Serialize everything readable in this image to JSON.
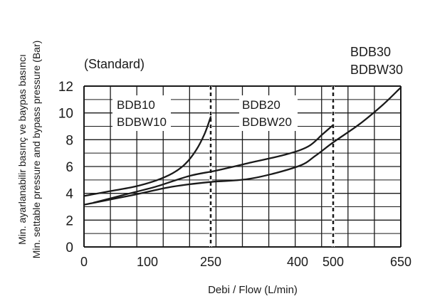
{
  "chart_data": {
    "type": "line",
    "title": "(Standard)",
    "xlabel": "Debi / Flow (L/min)",
    "ylabel_lines": [
      "Min. ayarlanabilir basınç ve baypas basıncı",
      "Min. settable pressure and bypass pressure (Bar)"
    ],
    "x_ticks": [
      "0",
      "100",
      "250",
      "400",
      "500",
      "650"
    ],
    "y_ticks": [
      "0",
      "2",
      "4",
      "6",
      "8",
      "10",
      "12"
    ],
    "ylim": [
      0,
      12
    ],
    "grid": true,
    "limit_markers": [
      {
        "series": "BDB10",
        "x": 250
      },
      {
        "series": "BDB20",
        "x": 500
      }
    ],
    "series": [
      {
        "name": "BDB10",
        "label_lines": [
          "BDB10",
          "BDBW10"
        ],
        "points": [
          [
            0,
            3.8
          ],
          [
            40,
            4.15
          ],
          [
            80,
            4.5
          ],
          [
            120,
            4.95
          ],
          [
            160,
            5.5
          ],
          [
            190,
            6.2
          ],
          [
            215,
            7.2
          ],
          [
            235,
            8.4
          ],
          [
            250,
            9.7
          ]
        ]
      },
      {
        "name": "BDB20",
        "label_lines": [
          "BDB20",
          "BDBW20"
        ],
        "points": [
          [
            15,
            3.3
          ],
          [
            60,
            3.85
          ],
          [
            120,
            4.5
          ],
          [
            200,
            5.3
          ],
          [
            260,
            5.7
          ],
          [
            320,
            6.3
          ],
          [
            380,
            6.9
          ],
          [
            430,
            7.5
          ],
          [
            470,
            8.4
          ],
          [
            500,
            9.1
          ]
        ]
      },
      {
        "name": "BDB30",
        "label_lines": [
          "BDB30",
          "BDBW30"
        ],
        "points": [
          [
            0,
            3.15
          ],
          [
            80,
            3.9
          ],
          [
            160,
            4.5
          ],
          [
            250,
            4.85
          ],
          [
            320,
            5.1
          ],
          [
            400,
            6.0
          ],
          [
            450,
            6.8
          ],
          [
            500,
            7.8
          ],
          [
            560,
            9.2
          ],
          [
            610,
            10.6
          ],
          [
            650,
            11.9
          ]
        ]
      }
    ]
  }
}
